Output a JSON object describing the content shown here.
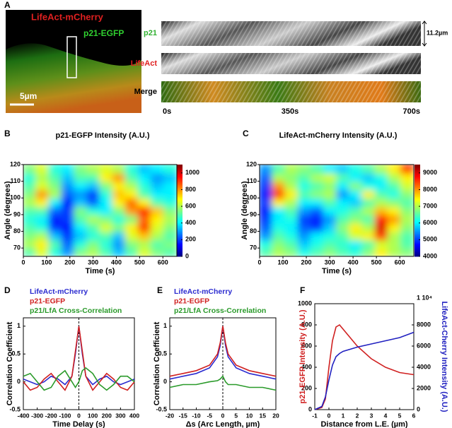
{
  "panel_a": {
    "panel": "A",
    "overlay_labels": [
      "LifeAct-mCherry",
      "p21-EGFP"
    ],
    "scale_bar": "5µm",
    "kymograph_rows": [
      "p21",
      "LifeAct",
      "Merge"
    ],
    "time_labels": [
      "0s",
      "350s",
      "700s"
    ],
    "height_label": "11.2µm"
  },
  "chart_data": [
    {
      "type": "heatmap",
      "panel": "B",
      "title": "p21-EGFP Intensity (A.U.)",
      "xlabel": "Time (s)",
      "ylabel": "Angle (degrees)",
      "xbins": [
        0,
        55,
        110,
        165,
        220,
        275,
        330,
        385,
        440,
        495,
        550,
        605,
        660
      ],
      "ybins": [
        65,
        70,
        75,
        80,
        85,
        90,
        95,
        100,
        105,
        110,
        115,
        120
      ],
      "xlim": [
        0,
        660
      ],
      "ylim": [
        65,
        120
      ],
      "xticks": [
        0,
        100,
        200,
        300,
        400,
        500,
        600
      ],
      "yticks": [
        70,
        80,
        90,
        100,
        110,
        120
      ],
      "zlim": [
        0,
        1100
      ],
      "zticks": [
        0,
        200,
        400,
        600,
        800,
        1000
      ],
      "colormap": "jet",
      "values": [
        [
          500,
          650,
          450,
          300,
          550,
          600,
          500,
          350,
          500,
          650,
          550,
          500
        ],
        [
          600,
          700,
          500,
          250,
          450,
          550,
          450,
          300,
          550,
          600,
          500,
          550
        ],
        [
          550,
          600,
          350,
          200,
          350,
          450,
          500,
          350,
          650,
          750,
          600,
          500
        ],
        [
          500,
          450,
          200,
          150,
          400,
          500,
          650,
          550,
          700,
          900,
          650,
          550
        ],
        [
          450,
          400,
          150,
          200,
          500,
          600,
          550,
          450,
          550,
          850,
          700,
          600
        ],
        [
          500,
          500,
          250,
          200,
          550,
          450,
          400,
          550,
          800,
          950,
          750,
          550
        ],
        [
          600,
          700,
          400,
          150,
          350,
          250,
          400,
          700,
          850,
          700,
          500,
          450
        ],
        [
          550,
          800,
          600,
          250,
          300,
          200,
          450,
          750,
          700,
          500,
          400,
          400
        ],
        [
          500,
          650,
          550,
          300,
          400,
          350,
          550,
          700,
          600,
          450,
          350,
          400
        ],
        [
          450,
          600,
          500,
          350,
          500,
          500,
          700,
          800,
          500,
          400,
          300,
          350
        ],
        [
          550,
          650,
          450,
          400,
          550,
          600,
          650,
          600,
          450,
          350,
          400,
          450
        ]
      ]
    },
    {
      "type": "heatmap",
      "panel": "C",
      "title": "LifeAct-mCherry Intensity (A.U.)",
      "xlabel": "Time (s)",
      "ylabel": "Angle (degrees)",
      "xbins": [
        0,
        55,
        110,
        165,
        220,
        275,
        330,
        385,
        440,
        495,
        550,
        605,
        660
      ],
      "ybins": [
        65,
        70,
        75,
        80,
        85,
        90,
        95,
        100,
        105,
        110,
        115,
        120
      ],
      "xlim": [
        0,
        660
      ],
      "ylim": [
        65,
        120
      ],
      "xticks": [
        0,
        100,
        200,
        300,
        400,
        500,
        600
      ],
      "yticks": [
        70,
        80,
        90,
        100,
        110,
        120
      ],
      "zlim": [
        4000,
        9500
      ],
      "zticks": [
        4000,
        5000,
        6000,
        7000,
        8000,
        9000
      ],
      "colormap": "jet",
      "values": [
        [
          6500,
          7000,
          6800,
          6200,
          6500,
          6800,
          6500,
          6300,
          6800,
          7500,
          7000,
          6800
        ],
        [
          6200,
          6800,
          6500,
          5800,
          6200,
          6500,
          6300,
          6000,
          6500,
          7200,
          7000,
          6500
        ],
        [
          5500,
          6500,
          6200,
          5500,
          6000,
          6200,
          6500,
          7200,
          7500,
          8500,
          7000,
          6500
        ],
        [
          5200,
          6200,
          6000,
          5200,
          5000,
          5800,
          6800,
          7500,
          7000,
          9000,
          7500,
          6800
        ],
        [
          5000,
          6000,
          6200,
          5000,
          4800,
          5500,
          6500,
          6800,
          6500,
          8800,
          8000,
          7000
        ],
        [
          4800,
          6000,
          6500,
          5500,
          5200,
          6000,
          6200,
          6500,
          7000,
          7800,
          7500,
          6800
        ],
        [
          5000,
          7500,
          7000,
          6000,
          6000,
          6500,
          6000,
          5800,
          6500,
          7000,
          6800,
          6500
        ],
        [
          4800,
          8500,
          7500,
          6500,
          6800,
          7000,
          5500,
          6000,
          7500,
          6500,
          6200,
          6800
        ],
        [
          5000,
          8000,
          7000,
          6200,
          6500,
          6800,
          6000,
          6800,
          6200,
          6000,
          6500,
          7200
        ],
        [
          5200,
          7000,
          6800,
          6500,
          7000,
          7200,
          6500,
          6000,
          5800,
          6200,
          7000,
          7500
        ],
        [
          5500,
          6500,
          7000,
          6800,
          6500,
          6000,
          5800,
          6200,
          6500,
          7000,
          7500,
          8500
        ]
      ]
    },
    {
      "type": "line",
      "panel": "D",
      "xlabel": "Time Delay (s)",
      "ylabel": "Correlation Coefficient",
      "x": [
        -400,
        -350,
        -300,
        -250,
        -200,
        -150,
        -100,
        -50,
        -25,
        0,
        25,
        50,
        100,
        150,
        200,
        250,
        300,
        350,
        400
      ],
      "xlim": [
        -400,
        400
      ],
      "ylim": [
        -0.5,
        1.15
      ],
      "xticks": [
        -400,
        -300,
        -200,
        -100,
        0,
        100,
        200,
        300,
        400
      ],
      "yticks": [
        -0.5,
        0,
        0.5,
        1
      ],
      "vline": 0,
      "series": [
        {
          "name": "LifeAct-mCherry",
          "color": "#2b2bd0",
          "values": [
            0.05,
            0.0,
            -0.05,
            0.0,
            0.1,
            0.05,
            -0.05,
            0.1,
            0.5,
            1.0,
            0.5,
            0.1,
            -0.05,
            0.05,
            0.1,
            0.0,
            -0.05,
            0.0,
            0.05
          ]
        },
        {
          "name": "p21-EGFP",
          "color": "#d02020",
          "values": [
            0.0,
            -0.15,
            -0.1,
            0.05,
            0.15,
            0.0,
            -0.15,
            0.1,
            0.55,
            1.0,
            0.55,
            0.1,
            -0.15,
            0.0,
            0.15,
            0.05,
            -0.1,
            -0.15,
            0.0
          ]
        },
        {
          "name": "p21/LfA Cross-Correlation",
          "color": "#2a9a2a",
          "values": [
            0.1,
            0.15,
            0.0,
            -0.15,
            -0.1,
            0.1,
            0.2,
            0.0,
            -0.1,
            0.0,
            0.2,
            0.25,
            0.15,
            -0.05,
            -0.15,
            -0.05,
            0.1,
            0.1,
            0.0
          ]
        }
      ]
    },
    {
      "type": "line",
      "panel": "E",
      "xlabel": "Δs (Arc Length, µm)",
      "ylabel": "Correlation Coefficient",
      "x": [
        -20,
        -15,
        -10,
        -5,
        -2,
        -1,
        0,
        1,
        2,
        5,
        10,
        15,
        20
      ],
      "xlim": [
        -20,
        20
      ],
      "ylim": [
        -0.5,
        1.15
      ],
      "xticks": [
        -20,
        -15,
        -10,
        -5,
        0,
        5,
        10,
        15,
        20
      ],
      "yticks": [
        -0.5,
        0,
        0.5,
        1
      ],
      "vline": 0,
      "series": [
        {
          "name": "LifeAct-mCherry",
          "color": "#2b2bd0",
          "values": [
            0.05,
            0.1,
            0.15,
            0.25,
            0.45,
            0.65,
            1.0,
            0.65,
            0.45,
            0.25,
            0.15,
            0.1,
            0.05
          ]
        },
        {
          "name": "p21-EGFP",
          "color": "#d02020",
          "values": [
            0.1,
            0.15,
            0.2,
            0.3,
            0.5,
            0.7,
            1.0,
            0.7,
            0.5,
            0.3,
            0.2,
            0.15,
            0.1
          ]
        },
        {
          "name": "p21/LfA Cross-Correlation",
          "color": "#2a9a2a",
          "values": [
            -0.1,
            -0.05,
            -0.05,
            0.0,
            0.02,
            0.05,
            0.1,
            0.0,
            -0.05,
            -0.05,
            -0.1,
            -0.1,
            -0.15
          ]
        }
      ]
    },
    {
      "type": "line",
      "panel": "F",
      "xlabel": "Distance from L.E. (µm)",
      "ylabel": "p21-EGFP Intensity (A.U.)",
      "y2label": "LifeAct-Cherry Intensity (A.U.)",
      "x": [
        -1,
        -0.5,
        -0.25,
        0,
        0.25,
        0.5,
        0.75,
        1,
        1.5,
        2,
        3,
        4,
        5,
        6
      ],
      "xlim": [
        -1,
        6
      ],
      "ylim": [
        0,
        1000
      ],
      "y2lim": [
        0,
        10000
      ],
      "xticks": [
        -1,
        0,
        1,
        2,
        3,
        4,
        5,
        6
      ],
      "yticks": [
        0,
        200,
        400,
        600,
        800,
        1000
      ],
      "y2ticks": [
        0,
        2000,
        4000,
        6000,
        8000,
        {
          "value": 10000,
          "label": "1 10⁴"
        }
      ],
      "series": [
        {
          "name": "p21-EGFP",
          "color": "#d02020",
          "values": [
            0,
            20,
            100,
            400,
            650,
            780,
            800,
            760,
            680,
            600,
            480,
            400,
            350,
            330
          ]
        },
        {
          "name": "LifeAct-Cherry",
          "color": "#2020c0",
          "axis": "y2",
          "values": [
            0,
            300,
            1200,
            2800,
            4200,
            5000,
            5300,
            5500,
            5700,
            5900,
            6200,
            6500,
            6800,
            7300
          ]
        }
      ]
    }
  ]
}
